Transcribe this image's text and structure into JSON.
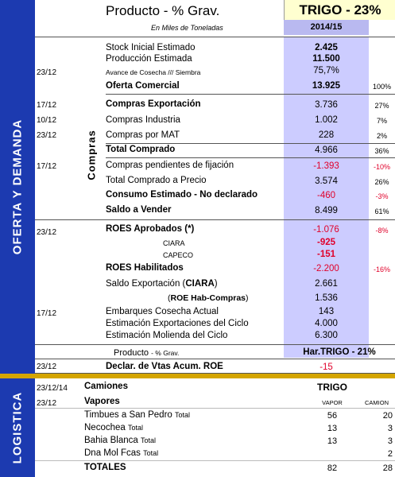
{
  "header": {
    "title": "Producto -  % Grav.",
    "product_box": "TRIGO -  23%",
    "subtitle": "En Miles de Toneladas",
    "year": "2014/15"
  },
  "side_labels": {
    "oferta": "OFERTA Y DEMANDA",
    "logistica": "LOGISTICA"
  },
  "vertical_label": "Compras",
  "rows": [
    {
      "date": "",
      "label": "Stock Inicial Estimado",
      "value": "2.425",
      "pct": ""
    },
    {
      "date": "",
      "label": "Producción Estimada",
      "value": "11.500",
      "pct": ""
    },
    {
      "date": "23/12",
      "label": "Avance de Cosecha /// Siembra",
      "value": "75,7%",
      "pct": ""
    },
    {
      "date": "",
      "label": "Oferta Comercial",
      "value": "13.925",
      "pct": "100%"
    },
    {
      "date": "17/12",
      "label": "Compras Exportación",
      "value": "3.736",
      "pct": "27%"
    },
    {
      "date": "10/12",
      "label": "Compras Industria",
      "value": "1.002",
      "pct": "7%"
    },
    {
      "date": "23/12",
      "label": "Compras por MAT",
      "value": "228",
      "pct": "2%"
    },
    {
      "date": "",
      "label": "Total Comprado",
      "value": "4.966",
      "pct": "36%"
    },
    {
      "date": "17/12",
      "label": "Compras pendientes de fijación",
      "value": "-1.393",
      "pct": "-10%"
    },
    {
      "date": "",
      "label": "Total Comprado a Precio",
      "value": "3.574",
      "pct": "26%"
    },
    {
      "date": "",
      "label": "Consumo Estimado - No declarado",
      "value": "-460",
      "pct": "-3%"
    },
    {
      "date": "",
      "label": "Saldo a Vender",
      "value": "8.499",
      "pct": "61%"
    },
    {
      "date": "23/12",
      "label": "ROES Aprobados (*)",
      "value": "-1.076",
      "pct": "-8%"
    },
    {
      "date": "",
      "label": "CIARA",
      "value": "-925",
      "pct": ""
    },
    {
      "date": "",
      "label": "CAPECO",
      "value": "-151",
      "pct": ""
    },
    {
      "date": "",
      "label": "ROES Habilitados",
      "value": "-2.200",
      "pct": "-16%"
    },
    {
      "date": "",
      "label_pre": "Saldo Exportación (",
      "label_bold": "CIARA",
      "label_post": ")",
      "value": "2.661",
      "pct": ""
    },
    {
      "date": "",
      "label_pre": "(",
      "label_bold": "ROE Hab-Compras",
      "label_post": ")",
      "value": "1.536",
      "pct": ""
    },
    {
      "date": "17/12",
      "label": "Embarques Cosecha Actual",
      "value": "143",
      "pct": ""
    },
    {
      "date": "",
      "label": "Estimación Exportaciones del Ciclo",
      "value": "4.000",
      "pct": ""
    },
    {
      "date": "",
      "label": "Estimación Molienda del Ciclo",
      "value": "6.300",
      "pct": ""
    }
  ],
  "product_row": {
    "label": "Producto",
    "label_small": "- % Grav.",
    "value": "Har.TRIGO  -  21%"
  },
  "declar_row": {
    "date": "23/12",
    "label": "Declar. de Vtas Acum.  ROE",
    "value": "-15"
  },
  "logistica": {
    "camiones": {
      "date": "23/12/14",
      "label": "Camiones",
      "product": "TRIGO"
    },
    "vapores": {
      "date": "23/12",
      "label": "Vapores",
      "col_vapor": "VAPOR",
      "col_camion": "CAMION"
    },
    "rows": [
      {
        "label": "Timbues a San Pedro",
        "label_small": "Total",
        "vapor": "56",
        "camion": "20"
      },
      {
        "label": "Necochea",
        "label_small": "Total",
        "vapor": "13",
        "camion": "3"
      },
      {
        "label": "Bahia Blanca",
        "label_small": "Total",
        "vapor": "13",
        "camion": "3"
      },
      {
        "label": "Dna Mol Fcas",
        "label_small": "Total",
        "vapor": "",
        "camion": "2"
      }
    ],
    "totales": {
      "label": "TOTALES",
      "vapor": "82",
      "camion": "28"
    }
  }
}
